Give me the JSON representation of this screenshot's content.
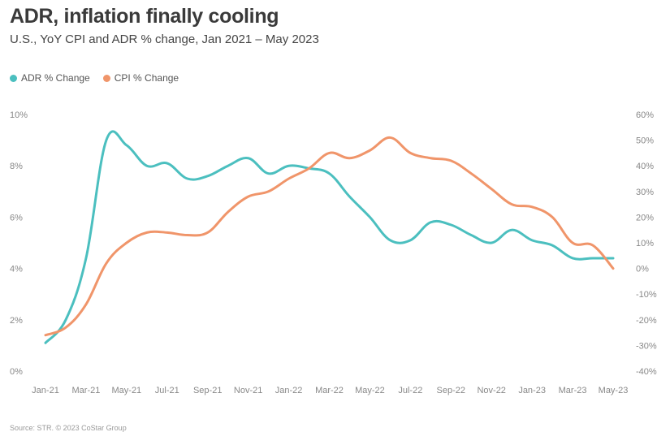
{
  "title": "ADR, inflation finally cooling",
  "subtitle": "U.S., YoY CPI and ADR % change, Jan 2021 – May 2023",
  "source": "Source: STR. © 2023 CoStar Group",
  "colors": {
    "adr": "#4bbfbf",
    "cpi": "#f0956a"
  },
  "chart_data": {
    "type": "line",
    "title": "ADR, inflation finally cooling",
    "subtitle": "U.S., YoY CPI and ADR % change, Jan 2021 – May 2023",
    "legend_position": "top-left",
    "grid": false,
    "x_tick_labels": [
      "Jan-21",
      "Mar-21",
      "May-21",
      "Jul-21",
      "Sep-21",
      "Nov-21",
      "Jan-22",
      "Mar-22",
      "May-22",
      "Jul-22",
      "Sep-22",
      "Nov-22",
      "Jan-23",
      "Mar-23",
      "May-23"
    ],
    "x": [
      "Jan-21",
      "Feb-21",
      "Mar-21",
      "Apr-21",
      "May-21",
      "Jun-21",
      "Jul-21",
      "Aug-21",
      "Sep-21",
      "Oct-21",
      "Nov-21",
      "Dec-21",
      "Jan-22",
      "Feb-22",
      "Mar-22",
      "Apr-22",
      "May-22",
      "Jun-22",
      "Jul-22",
      "Aug-22",
      "Sep-22",
      "Oct-22",
      "Nov-22",
      "Dec-22",
      "Jan-23",
      "Feb-23",
      "Mar-23",
      "Apr-23",
      "May-23"
    ],
    "y_left": {
      "ylim": [
        0,
        10
      ],
      "ticks": [
        "0%",
        "2%",
        "4%",
        "6%",
        "8%",
        "10%"
      ]
    },
    "y_right": {
      "ylim": [
        -40,
        60
      ],
      "ticks": [
        "-40%",
        "-30%",
        "-20%",
        "-10%",
        "0%",
        "10%",
        "20%",
        "30%",
        "40%",
        "50%",
        "60%"
      ]
    },
    "series": [
      {
        "name": "ADR % Change",
        "axis": "right",
        "color": "#4bbfbf",
        "values": [
          -29,
          -20,
          4,
          50,
          48,
          40,
          41,
          35,
          36,
          40,
          43,
          37,
          40,
          39,
          37,
          28,
          20,
          11,
          11,
          18,
          17,
          13,
          10,
          15,
          11,
          9,
          4,
          4,
          4
        ]
      },
      {
        "name": "CPI % Change",
        "axis": "left",
        "color": "#f0956a",
        "values": [
          1.4,
          1.7,
          2.6,
          4.2,
          5.0,
          5.4,
          5.4,
          5.3,
          5.4,
          6.2,
          6.8,
          7.0,
          7.5,
          7.9,
          8.5,
          8.3,
          8.6,
          9.1,
          8.5,
          8.3,
          8.2,
          7.7,
          7.1,
          6.5,
          6.4,
          6.0,
          5.0,
          4.9,
          4.0
        ]
      }
    ]
  }
}
